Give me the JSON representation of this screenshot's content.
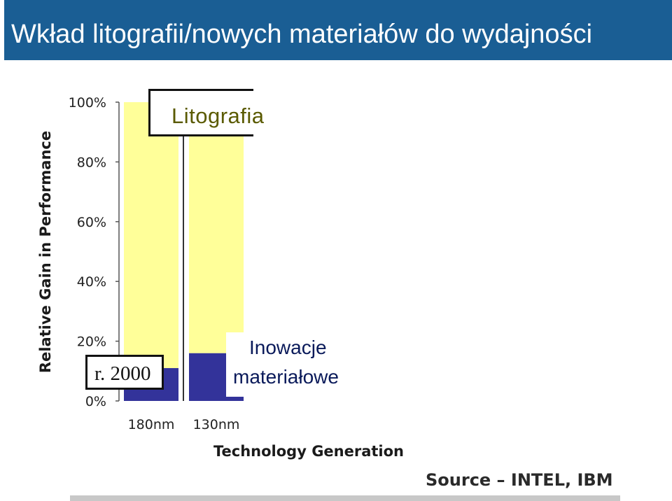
{
  "title": "Wkład litografii/nowych materiałów do wydajności",
  "chart_data": {
    "type": "bar",
    "stacked": true,
    "categories": [
      "180nm",
      "130nm"
    ],
    "series": [
      {
        "name": "Inowacje materiałowe",
        "values": [
          11,
          16
        ],
        "color": "#33339a"
      },
      {
        "name": "Litografia",
        "values": [
          89,
          84
        ],
        "color": "#ffff99"
      }
    ],
    "ylabel": "Relative Gain in Performance",
    "xlabel": "Technology Generation",
    "ylim": [
      0,
      100
    ],
    "yticks": [
      "0%",
      "20%",
      "40%",
      "60%",
      "80%",
      "100%"
    ],
    "ytick_values": [
      0,
      20,
      40,
      60,
      80,
      100
    ],
    "grid": true
  },
  "annotations": {
    "litografia": "Litografia",
    "year": "r. 2000",
    "innovation_line1": "Inowacje",
    "innovation_line2": "materiałowe"
  },
  "source": "Source – INTEL, IBM"
}
